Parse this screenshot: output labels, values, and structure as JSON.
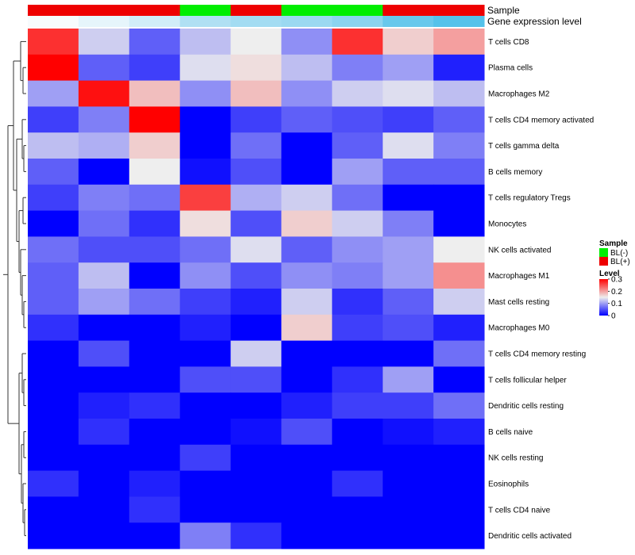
{
  "chart_data": {
    "type": "heatmap",
    "title": "",
    "annotation_rows": [
      {
        "label": "Sample",
        "values": [
          "BL(+)",
          "BL(+)",
          "BL(+)",
          "BL(-)",
          "BL(+)",
          "BL(-)",
          "BL(-)",
          "BL(+)",
          "BL(+)"
        ]
      },
      {
        "label": "Gene expression level",
        "values": [
          0.2,
          1.0,
          2.0,
          3.6,
          4.2,
          4.6,
          5.5,
          7.5,
          8.6
        ],
        "palette": [
          "#f7fbfd",
          "#9fdaf1",
          "#55c2ea"
        ]
      }
    ],
    "rows": [
      "T cells CD8",
      "Plasma cells",
      "Macrophages M2",
      "T cells CD4 memory activated",
      "T cells gamma delta",
      "B cells memory",
      "T cells regulatory  Tregs",
      "Monocytes",
      "NK cells activated",
      "Macrophages M1",
      "Mast cells resting",
      "Macrophages M0",
      "T cells CD4 memory resting",
      "T cells follicular helper",
      "Dendritic cells resting",
      "B cells naive",
      "NK cells resting",
      "Eosinophils",
      "T cells CD4 naive",
      "Dendritic cells activated"
    ],
    "values": [
      [
        0.27,
        0.13,
        0.06,
        0.12,
        0.15,
        0.09,
        0.27,
        0.17,
        0.2
      ],
      [
        0.3,
        0.06,
        0.04,
        0.14,
        0.16,
        0.12,
        0.08,
        0.1,
        0.02
      ],
      [
        0.1,
        0.29,
        0.18,
        0.09,
        0.18,
        0.09,
        0.13,
        0.14,
        0.12
      ],
      [
        0.04,
        0.08,
        0.3,
        0.0,
        0.04,
        0.06,
        0.05,
        0.04,
        0.06
      ],
      [
        0.12,
        0.11,
        0.17,
        0.0,
        0.07,
        0.0,
        0.06,
        0.14,
        0.08
      ],
      [
        0.06,
        0.0,
        0.15,
        0.01,
        0.05,
        0.0,
        0.1,
        0.06,
        0.06
      ],
      [
        0.04,
        0.08,
        0.07,
        0.26,
        0.11,
        0.13,
        0.07,
        0.0,
        0.0
      ],
      [
        0.0,
        0.07,
        0.03,
        0.16,
        0.05,
        0.17,
        0.13,
        0.08,
        0.0
      ],
      [
        0.07,
        0.05,
        0.05,
        0.07,
        0.14,
        0.06,
        0.09,
        0.1,
        0.15
      ],
      [
        0.06,
        0.12,
        0.0,
        0.09,
        0.05,
        0.09,
        0.08,
        0.1,
        0.21
      ],
      [
        0.06,
        0.1,
        0.07,
        0.04,
        0.02,
        0.13,
        0.03,
        0.06,
        0.13
      ],
      [
        0.03,
        0.0,
        0.0,
        0.02,
        0.0,
        0.17,
        0.04,
        0.05,
        0.02
      ],
      [
        0.0,
        0.05,
        0.0,
        0.0,
        0.13,
        0.0,
        0.0,
        0.0,
        0.07
      ],
      [
        0.0,
        0.0,
        0.0,
        0.05,
        0.05,
        0.0,
        0.03,
        0.1,
        0.0
      ],
      [
        0.0,
        0.02,
        0.03,
        0.0,
        0.0,
        0.02,
        0.04,
        0.04,
        0.07
      ],
      [
        0.0,
        0.03,
        0.0,
        0.0,
        0.01,
        0.05,
        0.0,
        0.01,
        0.02
      ],
      [
        0.0,
        0.0,
        0.0,
        0.04,
        0.0,
        0.0,
        0.0,
        0.0,
        0.0
      ],
      [
        0.03,
        0.0,
        0.02,
        0.0,
        0.0,
        0.0,
        0.03,
        0.0,
        0.0
      ],
      [
        0.0,
        0.0,
        0.03,
        0.0,
        0.0,
        0.0,
        0.0,
        0.0,
        0.0
      ],
      [
        0.0,
        0.0,
        0.0,
        0.08,
        0.03,
        0.0,
        0.0,
        0.0,
        0.0
      ]
    ],
    "color_scale": {
      "domain": [
        0,
        0.15,
        0.3
      ],
      "colors": [
        "#0000ff",
        "#eeeeee",
        "#ff0000"
      ]
    },
    "legend": {
      "sample": {
        "title": "Sample",
        "entries": [
          {
            "label": "BL(-)",
            "color": "#00ee00"
          },
          {
            "label": "BL(+)",
            "color": "#ee0000"
          }
        ]
      },
      "level": {
        "title": "Level",
        "ticks": [
          "0",
          "0.1",
          "0.2",
          "0.3"
        ],
        "tick_values": [
          0,
          0.1,
          0.2,
          0.3
        ]
      }
    },
    "row_dendrogram": true
  }
}
